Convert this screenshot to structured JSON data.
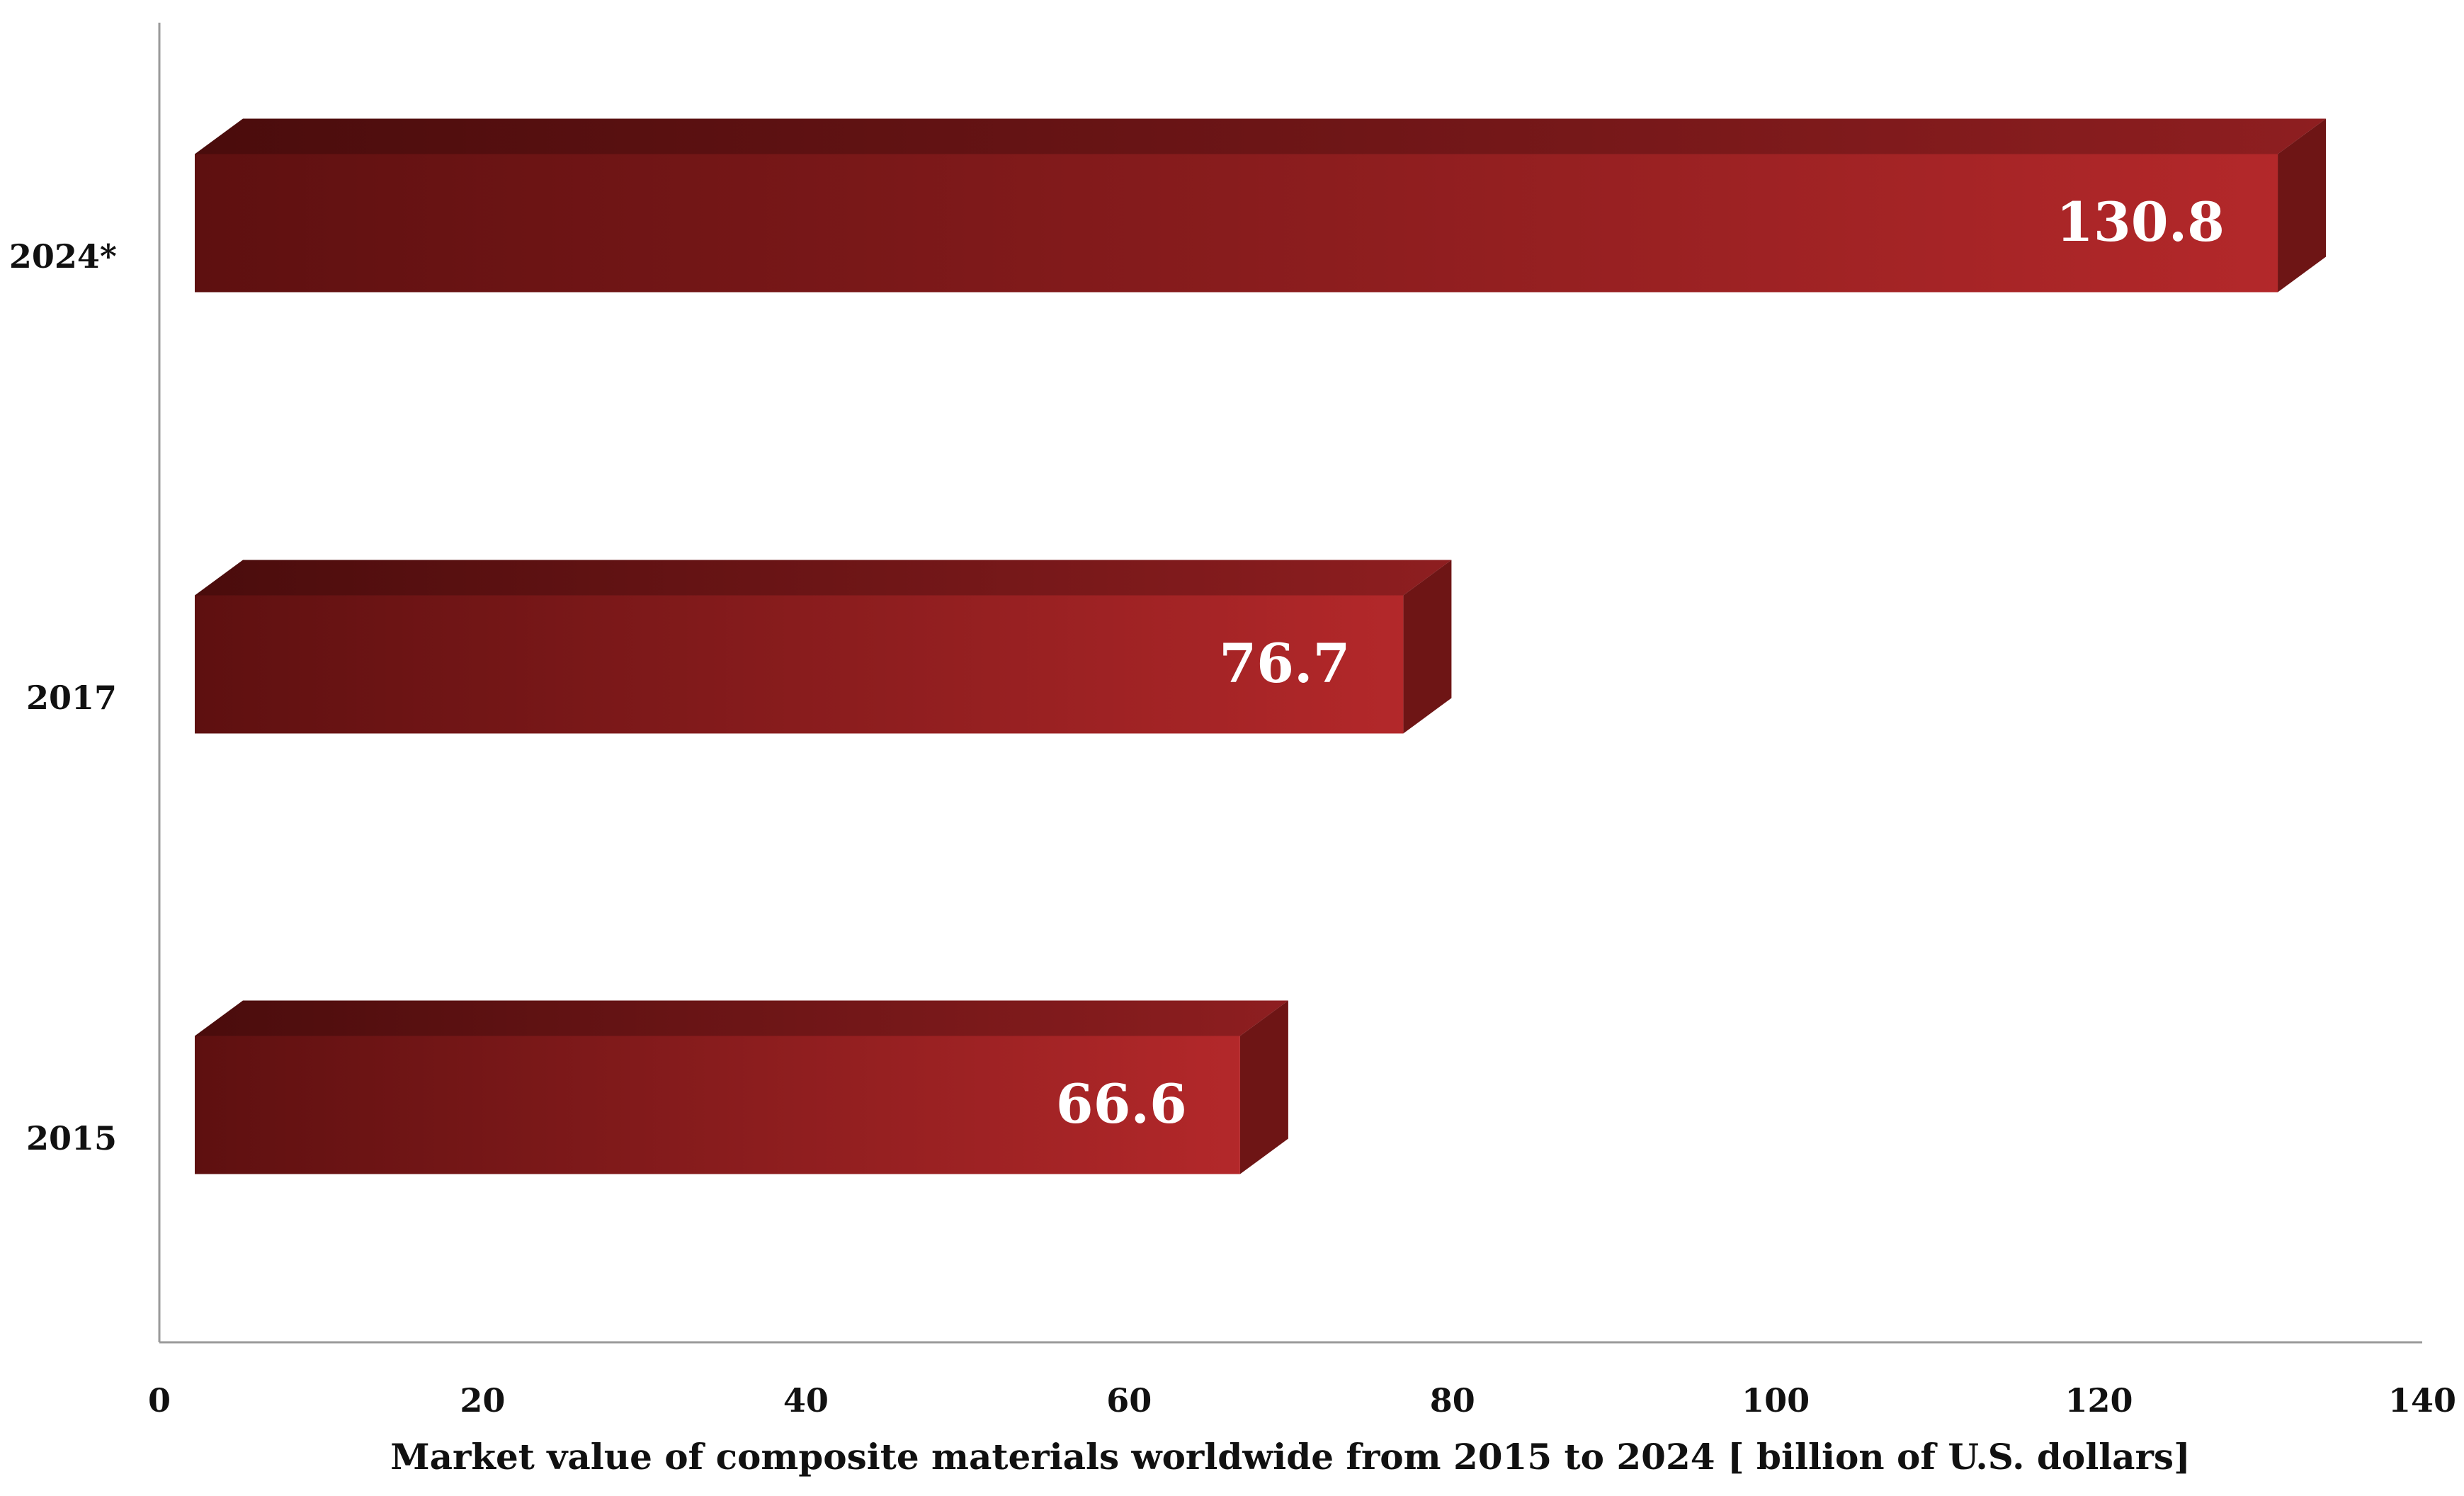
{
  "chart_data": {
    "type": "bar",
    "orientation": "horizontal",
    "categories": [
      "2024*",
      "2017",
      "2015"
    ],
    "values": [
      130.8,
      76.7,
      66.6
    ],
    "data_labels": [
      "130.8",
      "76.7",
      "66.6"
    ],
    "title": "",
    "xlabel": "Market value of composite materials worldwide from 2015 to 2024 [ billion of U.S. dollars]",
    "ylabel": "",
    "xlim": [
      0,
      140
    ],
    "x_ticks": [
      0,
      20,
      40,
      60,
      80,
      100,
      120,
      140
    ],
    "grid": false,
    "legend": "none",
    "colors": {
      "bar_dark": "#5e1010",
      "bar_light": "#b3282a",
      "bar_top_dark": "#4a0c0c",
      "bar_top_light": "#8e1e20",
      "bar_side": "#6e1515"
    }
  }
}
